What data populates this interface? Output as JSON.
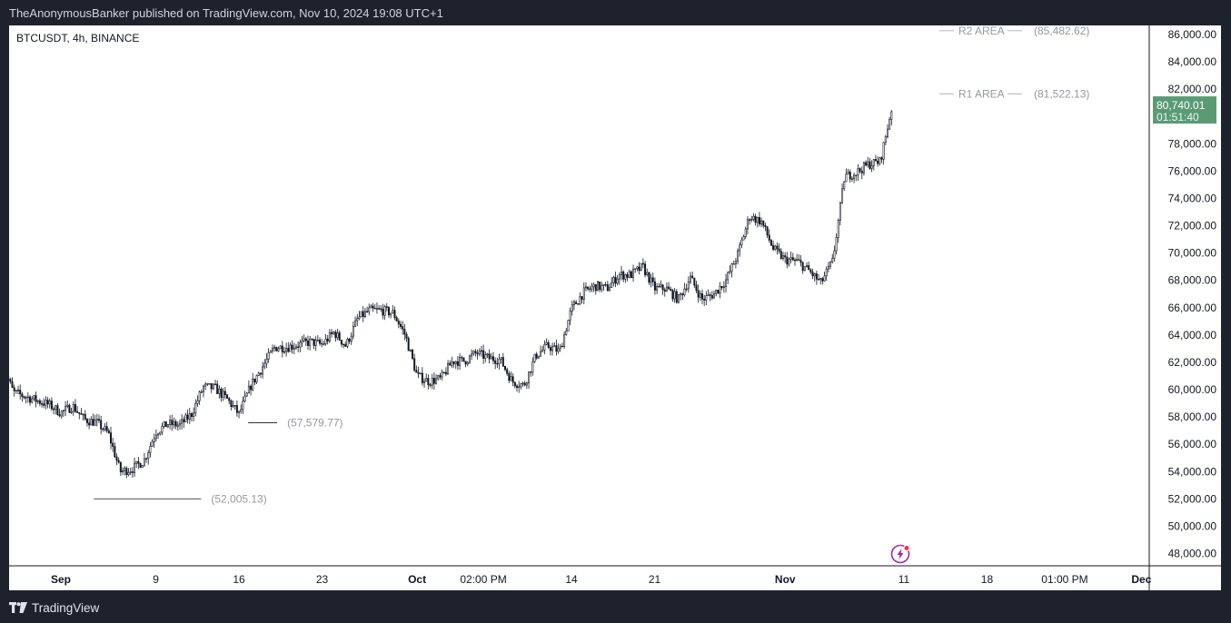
{
  "header": {
    "published_text": "TheAnonymousBanker published on TradingView.com, Nov 10, 2024 19:08 UTC+1"
  },
  "footer": {
    "brand": "TradingView",
    "logo_icon": "tradingview-logo-icon"
  },
  "chart_data": {
    "type": "candlestick",
    "title": "BTCUSDT, 4h, BINANCE",
    "symbol": "BTCUSDT",
    "interval": "4h",
    "exchange": "BINANCE",
    "ylim": [
      47000,
      86600
    ],
    "y_ticks": [
      "86,000.00",
      "84,000.00",
      "82,000.00",
      "80,000.00",
      "78,000.00",
      "76,000.00",
      "74,000.00",
      "72,000.00",
      "70,000.00",
      "68,000.00",
      "66,000.00",
      "64,000.00",
      "62,000.00",
      "60,000.00",
      "58,000.00",
      "56,000.00",
      "54,000.00",
      "52,000.00",
      "50,000.00",
      "48,000.00"
    ],
    "y_tick_values": [
      86000,
      84000,
      82000,
      80000,
      78000,
      76000,
      74000,
      72000,
      70000,
      68000,
      66000,
      64000,
      62000,
      60000,
      58000,
      56000,
      54000,
      52000,
      50000,
      48000
    ],
    "x_ticks": [
      {
        "label": "Sep",
        "bold": true,
        "date": "2024-09-01"
      },
      {
        "label": "9",
        "bold": false,
        "date": "2024-09-09"
      },
      {
        "label": "16",
        "bold": false,
        "date": "2024-09-16"
      },
      {
        "label": "23",
        "bold": false,
        "date": "2024-09-23"
      },
      {
        "label": "Oct",
        "bold": true,
        "date": "2024-10-01"
      },
      {
        "label": "02:00 PM",
        "bold": false,
        "date": "2024-10-06T14:00"
      },
      {
        "label": "14",
        "bold": false,
        "date": "2024-10-14"
      },
      {
        "label": "21",
        "bold": false,
        "date": "2024-10-21"
      },
      {
        "label": "Nov",
        "bold": true,
        "date": "2024-11-01"
      },
      {
        "label": "11",
        "bold": false,
        "date": "2024-11-11"
      },
      {
        "label": "18",
        "bold": false,
        "date": "2024-11-18"
      },
      {
        "label": "01:00 PM",
        "bold": false,
        "date": "2024-11-24T13:00"
      },
      {
        "label": "Dec",
        "bold": true,
        "date": "2024-12-01"
      }
    ],
    "price_path": [
      [
        "2024-08-27",
        62000
      ],
      [
        "2024-08-28",
        59800
      ],
      [
        "2024-08-29",
        59500
      ],
      [
        "2024-08-30",
        59200
      ],
      [
        "2024-08-31",
        58900
      ],
      [
        "2024-09-01",
        58300
      ],
      [
        "2024-09-02",
        58800
      ],
      [
        "2024-09-03",
        57800
      ],
      [
        "2024-09-04",
        57600
      ],
      [
        "2024-09-05",
        56800
      ],
      [
        "2024-09-06",
        54000
      ],
      [
        "2024-09-07",
        54200
      ],
      [
        "2024-09-08",
        54800
      ],
      [
        "2024-09-09",
        56900
      ],
      [
        "2024-09-10",
        57500
      ],
      [
        "2024-09-11",
        57400
      ],
      [
        "2024-09-12",
        58200
      ],
      [
        "2024-09-13",
        60200
      ],
      [
        "2024-09-14",
        60100
      ],
      [
        "2024-09-15",
        59300
      ],
      [
        "2024-09-16",
        58200
      ],
      [
        "2024-09-17",
        60300
      ],
      [
        "2024-09-18",
        61700
      ],
      [
        "2024-09-19",
        63100
      ],
      [
        "2024-09-20",
        63100
      ],
      [
        "2024-09-21",
        63300
      ],
      [
        "2024-09-22",
        63500
      ],
      [
        "2024-09-23",
        63300
      ],
      [
        "2024-09-24",
        64200
      ],
      [
        "2024-09-25",
        63200
      ],
      [
        "2024-09-26",
        65200
      ],
      [
        "2024-09-27",
        65800
      ],
      [
        "2024-09-28",
        65800
      ],
      [
        "2024-09-29",
        65600
      ],
      [
        "2024-09-30",
        64000
      ],
      [
        "2024-10-01",
        61000
      ],
      [
        "2024-10-02",
        60600
      ],
      [
        "2024-10-03",
        60800
      ],
      [
        "2024-10-04",
        62100
      ],
      [
        "2024-10-05",
        62100
      ],
      [
        "2024-10-06",
        62700
      ],
      [
        "2024-10-07",
        62300
      ],
      [
        "2024-10-08",
        62200
      ],
      [
        "2024-10-09",
        60600
      ],
      [
        "2024-10-10",
        60300
      ],
      [
        "2024-10-11",
        62500
      ],
      [
        "2024-10-12",
        63200
      ],
      [
        "2024-10-13",
        62800
      ],
      [
        "2024-10-14",
        65900
      ],
      [
        "2024-10-15",
        67100
      ],
      [
        "2024-10-16",
        67600
      ],
      [
        "2024-10-17",
        67400
      ],
      [
        "2024-10-18",
        68400
      ],
      [
        "2024-10-19",
        68400
      ],
      [
        "2024-10-20",
        69000
      ],
      [
        "2024-10-21",
        67400
      ],
      [
        "2024-10-22",
        67400
      ],
      [
        "2024-10-23",
        66600
      ],
      [
        "2024-10-24",
        68200
      ],
      [
        "2024-10-25",
        66600
      ],
      [
        "2024-10-26",
        67000
      ],
      [
        "2024-10-27",
        68000
      ],
      [
        "2024-10-28",
        69900
      ],
      [
        "2024-10-29",
        72700
      ],
      [
        "2024-10-30",
        72300
      ],
      [
        "2024-10-31",
        70300
      ],
      [
        "2024-11-01",
        69500
      ],
      [
        "2024-11-02",
        69400
      ],
      [
        "2024-11-03",
        68700
      ],
      [
        "2024-11-04",
        67800
      ],
      [
        "2024-11-05",
        69400
      ],
      [
        "2024-11-06",
        75600
      ],
      [
        "2024-11-07",
        75900
      ],
      [
        "2024-11-08",
        76500
      ],
      [
        "2024-11-09",
        76700
      ],
      [
        "2024-11-10",
        80740
      ]
    ],
    "annotations": [
      {
        "text": "(57,579.77)",
        "price": 57579.77,
        "date": "2024-09-17"
      },
      {
        "text": "(52,005.13)",
        "price": 52005.13,
        "date": "2024-09-06"
      }
    ],
    "levels": [
      {
        "name": "R2 AREA",
        "price_label": "(85,482.62)",
        "price": 85482.62
      },
      {
        "name": "R1 AREA",
        "price_label": "(81,522.13)",
        "price": 81522.13
      }
    ],
    "last_price": {
      "value": 80740.01,
      "label": "80,740.01",
      "countdown": "01:51:40",
      "color": "#5a9b75"
    },
    "colors": {
      "up": "#131722",
      "down": "#131722",
      "grid_text": "#131722",
      "annotation": "#9598a1",
      "lightning": "#9c27b0",
      "dot": "#f23645"
    },
    "icons": [
      "lightning-icon"
    ]
  }
}
